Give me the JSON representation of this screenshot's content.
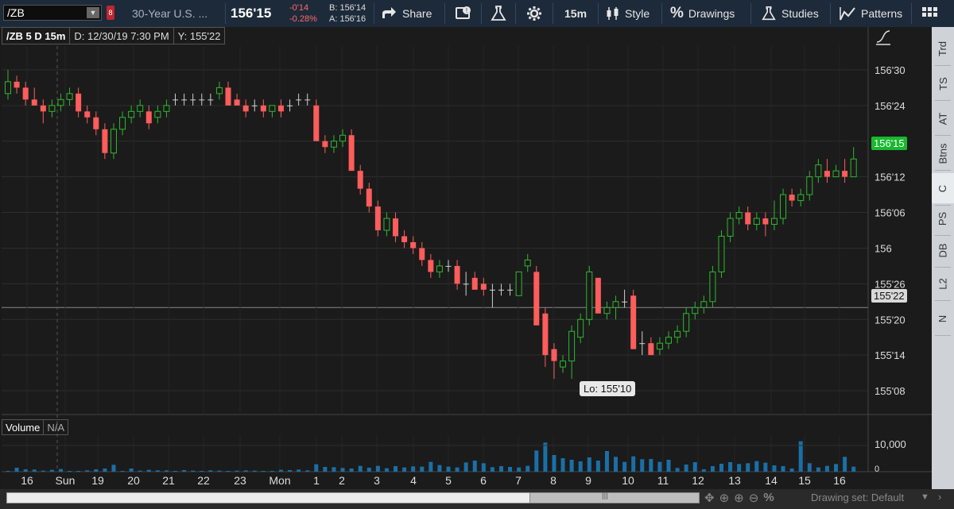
{
  "toolbar": {
    "symbol": "/ZB",
    "description": "30-Year U.S. ...",
    "last_price": "156'15",
    "net_change": "-0'14",
    "pct_change": "-0.28%",
    "bid": "B: 156'14",
    "ask": "A: 156'16",
    "share_label": "Share",
    "timeframe": "15m",
    "style_label": "Style",
    "drawings_label": "Drawings",
    "studies_label": "Studies",
    "patterns_label": "Patterns"
  },
  "chart_header": {
    "title": "/ZB 5 D 15m",
    "date_info": "D: 12/30/19 7:30 PM",
    "y_info": "Y: 155'22"
  },
  "price_axis": {
    "ticks": [
      "156'30",
      "156'24",
      "156'18",
      "156'12",
      "156'06",
      "156",
      "155'26",
      "155'20",
      "155'14",
      "155'08"
    ],
    "current_price_label": "156'15",
    "cursor_price_label": "155'22"
  },
  "low_label": "Lo: 155'10",
  "volume_panel": {
    "title": "Volume",
    "value": "N/A",
    "tick_label": "10,000",
    "zero_label": "0"
  },
  "time_axis": {
    "labels": [
      "16",
      "Sun",
      "19",
      "20",
      "21",
      "22",
      "23",
      "Mon",
      "1",
      "2",
      "3",
      "4",
      "5",
      "6",
      "7",
      "8",
      "9",
      "10",
      "11",
      "12",
      "13",
      "14",
      "15",
      "16"
    ]
  },
  "right_tabs": [
    "Trd",
    "TS",
    "AT",
    "Btns",
    "C",
    "PS",
    "DB",
    "L2",
    "N"
  ],
  "footer": {
    "drawing_set": "Drawing set: Default"
  },
  "colors": {
    "up": "#2eb82e",
    "down": "#ff5c5c",
    "volume": "#1a6fa8",
    "current_price_bg": "#19b82e"
  },
  "chart_data": {
    "type": "candlestick",
    "y_unit": "32nds of a point",
    "ylim": [
      "155'04",
      "157'02"
    ],
    "candles": [
      {
        "t": "16",
        "o": "156'26",
        "h": "156'30",
        "l": "156'25",
        "c": "156'28"
      },
      {
        "o": "156'28",
        "h": "156'29",
        "l": "156'26",
        "c": "156'27"
      },
      {
        "o": "156'27",
        "h": "156'28",
        "l": "156'24",
        "c": "156'25"
      },
      {
        "o": "156'25",
        "h": "156'27",
        "l": "156'24",
        "c": "156'24"
      },
      {
        "o": "156'24",
        "h": "156'25",
        "l": "156'21",
        "c": "156'23"
      },
      {
        "o": "156'23",
        "h": "156'25",
        "l": "156'22",
        "c": "156'24"
      },
      {
        "o": "156'24",
        "h": "156'26",
        "l": "156'23",
        "c": "156'25"
      },
      {
        "o": "156'25",
        "h": "156'27",
        "l": "156'24",
        "c": "156'26"
      },
      {
        "o": "156'26",
        "h": "156'27",
        "l": "156'22",
        "c": "156'23"
      },
      {
        "o": "156'23",
        "h": "156'24",
        "l": "156'21",
        "c": "156'22"
      },
      {
        "o": "156'22",
        "h": "156'23",
        "l": "156'19",
        "c": "156'20"
      },
      {
        "o": "156'20",
        "h": "156'21",
        "l": "156'15",
        "c": "156'16"
      },
      {
        "o": "156'16",
        "h": "156'21",
        "l": "156'15",
        "c": "156'20"
      },
      {
        "o": "156'20",
        "h": "156'23",
        "l": "156'19",
        "c": "156'22"
      },
      {
        "o": "156'22",
        "h": "156'24",
        "l": "156'21",
        "c": "156'23"
      },
      {
        "o": "156'23",
        "h": "156'25",
        "l": "156'22",
        "c": "156'24"
      },
      {
        "o": "156'23",
        "h": "156'24",
        "l": "156'20",
        "c": "156'21"
      },
      {
        "o": "156'22",
        "h": "156'24",
        "l": "156'21",
        "c": "156'23"
      },
      {
        "o": "156'23",
        "h": "156'25",
        "l": "156'22",
        "c": "156'24"
      },
      {
        "o": "156'25",
        "h": "156'26",
        "l": "156'24",
        "c": "156'25"
      },
      {
        "o": "156'25",
        "h": "156'26",
        "l": "156'24",
        "c": "156'25"
      },
      {
        "o": "156'25",
        "h": "156'26",
        "l": "156'24",
        "c": "156'25"
      },
      {
        "o": "156'25",
        "h": "156'26",
        "l": "156'24",
        "c": "156'25"
      },
      {
        "o": "156'25",
        "h": "156'26",
        "l": "156'24",
        "c": "156'25"
      },
      {
        "o": "156'26",
        "h": "156'28",
        "l": "156'25",
        "c": "156'27"
      },
      {
        "o": "156'27",
        "h": "156'28",
        "l": "156'24",
        "c": "156'24"
      },
      {
        "o": "156'25",
        "h": "156'26",
        "l": "156'24",
        "c": "156'24"
      },
      {
        "o": "156'24",
        "h": "156'25",
        "l": "156'22",
        "c": "156'23"
      },
      {
        "o": "156'24",
        "h": "156'25",
        "l": "156'23",
        "c": "156'24"
      },
      {
        "o": "156'24",
        "h": "156'25",
        "l": "156'22",
        "c": "156'23"
      },
      {
        "o": "156'23",
        "h": "156'24",
        "l": "156'22",
        "c": "156'24"
      },
      {
        "o": "156'24",
        "h": "156'25",
        "l": "156'22",
        "c": "156'23"
      },
      {
        "o": "156'24",
        "h": "156'25",
        "l": "156'23",
        "c": "156'24"
      },
      {
        "o": "156'25",
        "h": "156'26",
        "l": "156'24",
        "c": "156'25"
      },
      {
        "o": "156'25",
        "h": "156'26",
        "l": "156'24",
        "c": "156'25"
      },
      {
        "t": "2",
        "o": "156'24",
        "h": "156'25",
        "l": "156'18",
        "c": "156'18"
      },
      {
        "o": "156'18",
        "h": "156'19",
        "l": "156'16",
        "c": "156'17"
      },
      {
        "o": "156'17",
        "h": "156'19",
        "l": "156'16",
        "c": "156'18"
      },
      {
        "o": "156'18",
        "h": "156'20",
        "l": "156'17",
        "c": "156'19"
      },
      {
        "o": "156'19",
        "h": "156'20",
        "l": "156'16",
        "c": "156'13"
      },
      {
        "t": "3",
        "o": "156'13",
        "h": "156'14",
        "l": "156'09",
        "c": "156'10"
      },
      {
        "o": "156'10",
        "h": "156'11",
        "l": "156'06",
        "c": "156'07"
      },
      {
        "o": "156'07",
        "h": "156'08",
        "l": "156'02",
        "c": "156'03"
      },
      {
        "t": "4",
        "o": "156'03",
        "h": "156'06",
        "l": "156'02",
        "c": "156'05"
      },
      {
        "o": "156'05",
        "h": "156'06",
        "l": "156'01",
        "c": "156'02"
      },
      {
        "o": "156'02",
        "h": "156'03",
        "l": "156'00",
        "c": "156'01"
      },
      {
        "o": "156'01",
        "h": "156'02",
        "l": "155'31",
        "c": "156'00"
      },
      {
        "t": "5",
        "o": "156'00",
        "h": "156'01",
        "l": "155'29",
        "c": "155'30"
      },
      {
        "o": "155'30",
        "h": "155'31",
        "l": "155'27",
        "c": "155'28"
      },
      {
        "o": "155'28",
        "h": "155'30",
        "l": "155'27",
        "c": "155'29"
      },
      {
        "o": "155'29",
        "h": "155'30",
        "l": "155'28",
        "c": "155'29"
      },
      {
        "t": "6",
        "o": "155'29",
        "h": "155'30",
        "l": "155'25",
        "c": "155'26"
      },
      {
        "o": "155'26",
        "h": "155'28",
        "l": "155'24",
        "c": "155'26"
      },
      {
        "o": "155'27",
        "h": "155'28",
        "l": "155'25",
        "c": "155'25"
      },
      {
        "o": "155'26",
        "h": "155'27",
        "l": "155'24",
        "c": "155'25"
      },
      {
        "t": "7",
        "o": "155'25",
        "h": "155'26",
        "l": "155'22",
        "c": "155'25"
      },
      {
        "o": "155'25",
        "h": "155'26",
        "l": "155'24",
        "c": "155'25"
      },
      {
        "o": "155'25",
        "h": "155'26",
        "l": "155'24",
        "c": "155'25"
      },
      {
        "o": "155'24",
        "h": "155'28",
        "l": "155'24",
        "c": "155'28"
      },
      {
        "o": "155'29",
        "h": "155'31",
        "l": "155'28",
        "c": "155'30"
      },
      {
        "t": "8",
        "o": "155'28",
        "h": "155'29",
        "l": "155'19",
        "c": "155'19"
      },
      {
        "o": "155'21",
        "h": "155'22",
        "l": "155'12",
        "c": "155'14"
      },
      {
        "o": "155'15",
        "h": "155'16",
        "l": "155'10",
        "c": "155'13"
      },
      {
        "t": "9",
        "o": "155'12",
        "h": "155'14",
        "l": "155'11",
        "c": "155'13"
      },
      {
        "o": "155'13",
        "h": "155'19",
        "l": "155'10",
        "c": "155'18"
      },
      {
        "o": "155'17",
        "h": "155'21",
        "l": "155'16",
        "c": "155'20"
      },
      {
        "o": "155'20",
        "h": "155'29",
        "l": "155'19",
        "c": "155'28"
      },
      {
        "o": "155'27",
        "h": "155'27",
        "l": "155'21",
        "c": "155'21"
      },
      {
        "t": "10",
        "o": "155'21",
        "h": "155'23",
        "l": "155'20",
        "c": "155'22"
      },
      {
        "o": "155'22",
        "h": "155'24",
        "l": "155'20",
        "c": "155'23"
      },
      {
        "o": "155'23",
        "h": "155'25",
        "l": "155'22",
        "c": "155'23"
      },
      {
        "o": "155'24",
        "h": "155'25",
        "l": "155'15",
        "c": "155'15"
      },
      {
        "t": "11",
        "o": "155'16",
        "h": "155'18",
        "l": "155'14",
        "c": "155'16"
      },
      {
        "o": "155'16",
        "h": "155'17",
        "l": "155'14",
        "c": "155'14"
      },
      {
        "o": "155'15",
        "h": "155'17",
        "l": "155'14",
        "c": "155'16"
      },
      {
        "o": "155'16",
        "h": "155'18",
        "l": "155'15",
        "c": "155'17"
      },
      {
        "o": "155'17",
        "h": "155'19",
        "l": "155'16",
        "c": "155'18"
      },
      {
        "t": "12",
        "o": "155'18",
        "h": "155'22",
        "l": "155'17",
        "c": "155'21"
      },
      {
        "o": "155'21",
        "h": "155'23",
        "l": "155'20",
        "c": "155'22"
      },
      {
        "o": "155'22",
        "h": "155'24",
        "l": "155'21",
        "c": "155'23"
      },
      {
        "o": "155'23",
        "h": "155'29",
        "l": "155'22",
        "c": "155'28"
      },
      {
        "t": "13",
        "o": "155'28",
        "h": "156'03",
        "l": "155'27",
        "c": "156'02"
      },
      {
        "o": "156'02",
        "h": "156'06",
        "l": "156'01",
        "c": "156'05"
      },
      {
        "o": "156'05",
        "h": "156'07",
        "l": "156'04",
        "c": "156'06"
      },
      {
        "t": "14",
        "o": "156'06",
        "h": "156'07",
        "l": "156'03",
        "c": "156'04"
      },
      {
        "o": "156'04",
        "h": "156'06",
        "l": "156'03",
        "c": "156'05"
      },
      {
        "o": "156'05",
        "h": "156'06",
        "l": "156'02",
        "c": "156'04"
      },
      {
        "o": "156'04",
        "h": "156'08",
        "l": "156'03",
        "c": "156'05"
      },
      {
        "o": "156'05",
        "h": "156'10",
        "l": "156'04",
        "c": "156'09"
      },
      {
        "t": "15",
        "o": "156'09",
        "h": "156'10",
        "l": "156'07",
        "c": "156'08"
      },
      {
        "o": "156'08",
        "h": "156'10",
        "l": "156'07",
        "c": "156'09"
      },
      {
        "o": "156'09",
        "h": "156'13",
        "l": "156'08",
        "c": "156'12"
      },
      {
        "o": "156'12",
        "h": "156'15",
        "l": "156'11",
        "c": "156'14"
      },
      {
        "t": "16",
        "o": "156'13",
        "h": "156'15",
        "l": "156'11",
        "c": "156'12"
      },
      {
        "o": "156'12",
        "h": "156'14",
        "l": "156'12",
        "c": "156'13"
      },
      {
        "o": "156'13",
        "h": "156'15",
        "l": "156'11",
        "c": "156'12"
      },
      {
        "o": "156'12",
        "h": "156'17",
        "l": "156'12",
        "c": "156'15"
      }
    ],
    "volume": [
      200,
      1500,
      900,
      800,
      400,
      700,
      1000,
      300,
      200,
      500,
      900,
      1200,
      2600,
      300,
      1200,
      400,
      700,
      500,
      500,
      300,
      600,
      400,
      300,
      500,
      400,
      300,
      400,
      500,
      400,
      200,
      300,
      700,
      600,
      800,
      500,
      2800,
      1800,
      1700,
      1400,
      1200,
      2200,
      1500,
      2200,
      1300,
      2100,
      1600,
      2000,
      1900,
      3700,
      2500,
      1900,
      1600,
      3500,
      4200,
      3200,
      1700,
      2100,
      1800,
      1600,
      2200,
      8000,
      11000,
      6300,
      5100,
      4500,
      3900,
      5400,
      4200,
      7800,
      5600,
      3700,
      5800,
      4700,
      4800,
      3700,
      4500,
      1400,
      2700,
      3600,
      900,
      2100,
      3000,
      3600,
      2900,
      3200,
      4000,
      3400,
      2400,
      2100,
      1200,
      11500,
      3200,
      1600,
      2200,
      2900,
      5600,
      1900,
      1200,
      1100
    ],
    "volume_max": 12000
  }
}
